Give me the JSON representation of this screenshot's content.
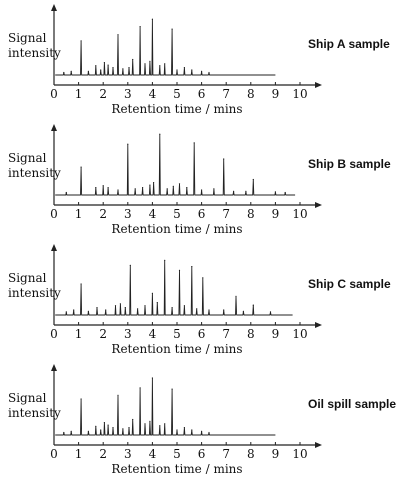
{
  "chart_data": [
    {
      "type": "line",
      "title": "Ship A sample",
      "ylabel": "Signal intensity",
      "ylabel_lines": [
        "Signal",
        "intensity"
      ],
      "xlabel": "Retention time / mins",
      "xlim": [
        0,
        10
      ],
      "x_ticks": [
        "0",
        "1",
        "2",
        "3",
        "4",
        "5",
        "6",
        "7",
        "8",
        "9",
        "10"
      ],
      "grid": false,
      "trace_end": 9.0,
      "series": [
        {
          "peaks": [
            {
              "x": 0.4,
              "y": 0.04
            },
            {
              "x": 0.7,
              "y": 0.06
            },
            {
              "x": 1.1,
              "y": 0.55
            },
            {
              "x": 1.4,
              "y": 0.06
            },
            {
              "x": 1.7,
              "y": 0.15
            },
            {
              "x": 1.9,
              "y": 0.08
            },
            {
              "x": 2.05,
              "y": 0.2
            },
            {
              "x": 2.2,
              "y": 0.16
            },
            {
              "x": 2.4,
              "y": 0.12
            },
            {
              "x": 2.6,
              "y": 0.65
            },
            {
              "x": 2.8,
              "y": 0.1
            },
            {
              "x": 3.05,
              "y": 0.12
            },
            {
              "x": 3.2,
              "y": 0.25
            },
            {
              "x": 3.5,
              "y": 0.78
            },
            {
              "x": 3.7,
              "y": 0.18
            },
            {
              "x": 3.9,
              "y": 0.22
            },
            {
              "x": 4.0,
              "y": 0.9
            },
            {
              "x": 4.3,
              "y": 0.15
            },
            {
              "x": 4.5,
              "y": 0.18
            },
            {
              "x": 4.8,
              "y": 0.74
            },
            {
              "x": 5.0,
              "y": 0.08
            },
            {
              "x": 5.3,
              "y": 0.12
            },
            {
              "x": 5.6,
              "y": 0.08
            },
            {
              "x": 6.0,
              "y": 0.06
            },
            {
              "x": 6.3,
              "y": 0.04
            }
          ]
        }
      ]
    },
    {
      "type": "line",
      "title": "Ship B sample",
      "ylabel": "Signal intensity",
      "ylabel_lines": [
        "Signal",
        "intensity"
      ],
      "xlabel": "Retention time / mins",
      "xlim": [
        0,
        10
      ],
      "x_ticks": [
        "0",
        "1",
        "2",
        "3",
        "4",
        "5",
        "6",
        "7",
        "8",
        "9",
        "10"
      ],
      "grid": false,
      "trace_end": 9.8,
      "series": [
        {
          "peaks": [
            {
              "x": 0.5,
              "y": 0.04
            },
            {
              "x": 1.1,
              "y": 0.45
            },
            {
              "x": 1.7,
              "y": 0.12
            },
            {
              "x": 2.0,
              "y": 0.15
            },
            {
              "x": 2.2,
              "y": 0.12
            },
            {
              "x": 2.6,
              "y": 0.08
            },
            {
              "x": 3.0,
              "y": 0.82
            },
            {
              "x": 3.3,
              "y": 0.1
            },
            {
              "x": 3.6,
              "y": 0.12
            },
            {
              "x": 3.9,
              "y": 0.16
            },
            {
              "x": 4.05,
              "y": 0.2
            },
            {
              "x": 4.3,
              "y": 0.98
            },
            {
              "x": 4.6,
              "y": 0.1
            },
            {
              "x": 4.85,
              "y": 0.14
            },
            {
              "x": 5.1,
              "y": 0.18
            },
            {
              "x": 5.4,
              "y": 0.12
            },
            {
              "x": 5.7,
              "y": 0.84
            },
            {
              "x": 6.0,
              "y": 0.08
            },
            {
              "x": 6.5,
              "y": 0.1
            },
            {
              "x": 6.9,
              "y": 0.58
            },
            {
              "x": 7.3,
              "y": 0.06
            },
            {
              "x": 7.8,
              "y": 0.06
            },
            {
              "x": 8.1,
              "y": 0.25
            },
            {
              "x": 9.0,
              "y": 0.05
            },
            {
              "x": 9.4,
              "y": 0.04
            }
          ]
        }
      ]
    },
    {
      "type": "line",
      "title": "Ship C sample",
      "ylabel": "Signal intensity",
      "ylabel_lines": [
        "Signal",
        "intensity"
      ],
      "xlabel": "Retention time / mins",
      "xlim": [
        0,
        10
      ],
      "x_ticks": [
        "0",
        "1",
        "2",
        "3",
        "4",
        "5",
        "6",
        "7",
        "8",
        "9",
        "10"
      ],
      "grid": false,
      "trace_end": 9.7,
      "series": [
        {
          "peaks": [
            {
              "x": 0.5,
              "y": 0.05
            },
            {
              "x": 0.8,
              "y": 0.08
            },
            {
              "x": 1.1,
              "y": 0.5
            },
            {
              "x": 1.4,
              "y": 0.06
            },
            {
              "x": 1.75,
              "y": 0.12
            },
            {
              "x": 2.1,
              "y": 0.08
            },
            {
              "x": 2.5,
              "y": 0.15
            },
            {
              "x": 2.7,
              "y": 0.18
            },
            {
              "x": 2.9,
              "y": 0.12
            },
            {
              "x": 3.1,
              "y": 0.8
            },
            {
              "x": 3.4,
              "y": 0.1
            },
            {
              "x": 3.7,
              "y": 0.15
            },
            {
              "x": 4.0,
              "y": 0.35
            },
            {
              "x": 4.2,
              "y": 0.2
            },
            {
              "x": 4.5,
              "y": 0.88
            },
            {
              "x": 4.8,
              "y": 0.12
            },
            {
              "x": 5.1,
              "y": 0.72
            },
            {
              "x": 5.3,
              "y": 0.15
            },
            {
              "x": 5.6,
              "y": 0.78
            },
            {
              "x": 5.8,
              "y": 0.1
            },
            {
              "x": 6.05,
              "y": 0.6
            },
            {
              "x": 6.3,
              "y": 0.08
            },
            {
              "x": 6.9,
              "y": 0.08
            },
            {
              "x": 7.4,
              "y": 0.3
            },
            {
              "x": 7.7,
              "y": 0.06
            },
            {
              "x": 8.1,
              "y": 0.16
            },
            {
              "x": 8.8,
              "y": 0.05
            }
          ]
        }
      ]
    },
    {
      "type": "line",
      "title": "Oil spill sample",
      "ylabel": "Signal intensity",
      "ylabel_lines": [
        "Signal",
        "intensity"
      ],
      "xlabel": "Retention time / mins",
      "xlim": [
        0,
        10
      ],
      "x_ticks": [
        "0",
        "1",
        "2",
        "3",
        "4",
        "5",
        "6",
        "7",
        "8",
        "9",
        "10"
      ],
      "grid": false,
      "trace_end": 9.0,
      "series": [
        {
          "peaks": [
            {
              "x": 0.4,
              "y": 0.04
            },
            {
              "x": 0.7,
              "y": 0.06
            },
            {
              "x": 1.1,
              "y": 0.58
            },
            {
              "x": 1.4,
              "y": 0.06
            },
            {
              "x": 1.7,
              "y": 0.14
            },
            {
              "x": 1.9,
              "y": 0.08
            },
            {
              "x": 2.05,
              "y": 0.2
            },
            {
              "x": 2.2,
              "y": 0.16
            },
            {
              "x": 2.4,
              "y": 0.12
            },
            {
              "x": 2.6,
              "y": 0.64
            },
            {
              "x": 2.8,
              "y": 0.1
            },
            {
              "x": 3.05,
              "y": 0.12
            },
            {
              "x": 3.2,
              "y": 0.25
            },
            {
              "x": 3.5,
              "y": 0.76
            },
            {
              "x": 3.7,
              "y": 0.18
            },
            {
              "x": 3.9,
              "y": 0.22
            },
            {
              "x": 4.0,
              "y": 0.92
            },
            {
              "x": 4.3,
              "y": 0.15
            },
            {
              "x": 4.5,
              "y": 0.18
            },
            {
              "x": 4.8,
              "y": 0.74
            },
            {
              "x": 5.0,
              "y": 0.08
            },
            {
              "x": 5.3,
              "y": 0.12
            },
            {
              "x": 5.6,
              "y": 0.08
            },
            {
              "x": 6.0,
              "y": 0.06
            },
            {
              "x": 6.3,
              "y": 0.04
            }
          ]
        }
      ]
    }
  ]
}
